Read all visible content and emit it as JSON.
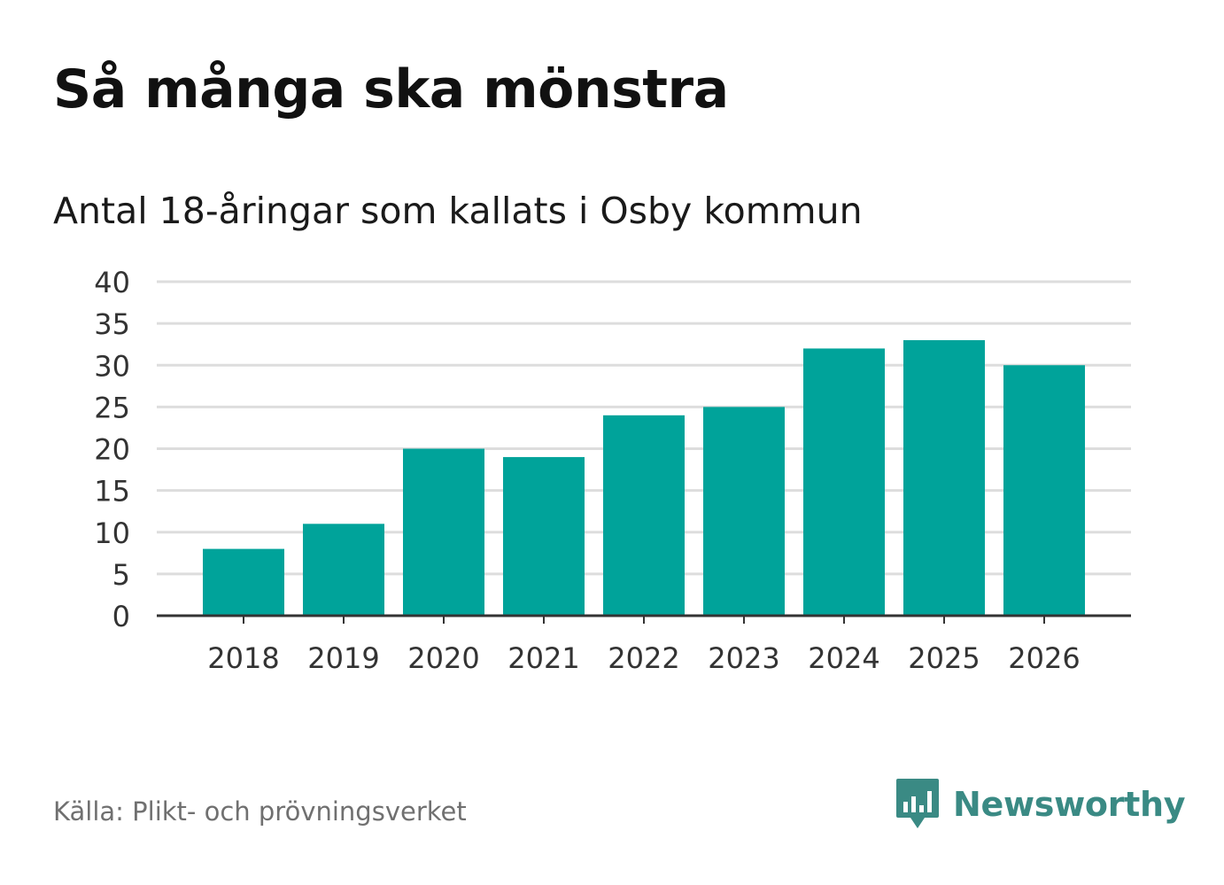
{
  "header": {
    "title": "Så många ska mönstra",
    "subtitle": "Antal 18-åringar som kallats i Osby kommun"
  },
  "footer": {
    "source": "Källa: Plikt- och prövningsverket",
    "brand": "Newsworthy",
    "brand_icon": "bar-chart-speech-bubble-icon"
  },
  "colors": {
    "bar": "#00a39a",
    "grid": "#dddddd",
    "axis": "#333333",
    "brand": "#3a8a84"
  },
  "chart_data": {
    "type": "bar",
    "title": "Så många ska mönstra",
    "subtitle": "Antal 18-åringar som kallats i Osby kommun",
    "xlabel": "",
    "ylabel": "",
    "categories": [
      "2018",
      "2019",
      "2020",
      "2021",
      "2022",
      "2023",
      "2024",
      "2025",
      "2026"
    ],
    "values": [
      8,
      11,
      20,
      19,
      24,
      25,
      32,
      33,
      30
    ],
    "ylim": [
      0,
      40
    ],
    "yticks": [
      0,
      5,
      10,
      15,
      20,
      25,
      30,
      35,
      40
    ],
    "grid": true,
    "legend": "none"
  }
}
